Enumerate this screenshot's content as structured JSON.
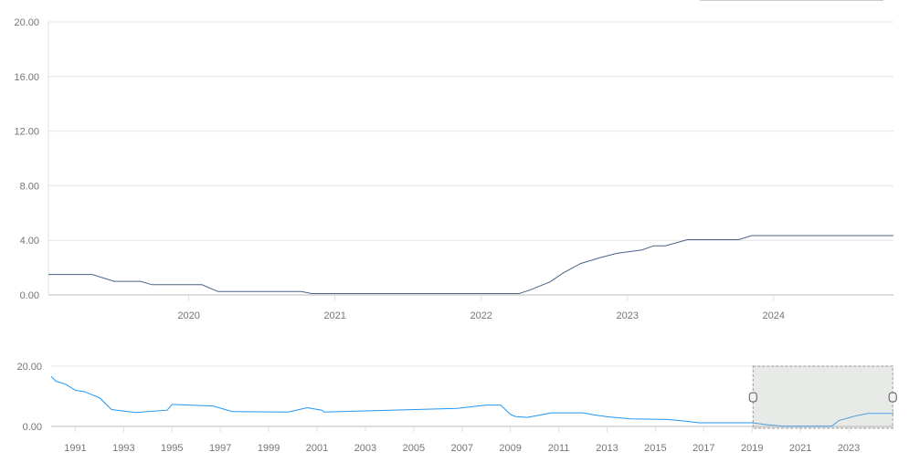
{
  "chart_data": [
    {
      "type": "line",
      "role": "main",
      "y_ticks": [
        "0.00",
        "4.00",
        "8.00",
        "12.00",
        "16.00",
        "20.00"
      ],
      "ylim": [
        0,
        20
      ],
      "x_ticks": [
        "2020",
        "2021",
        "2022",
        "2023",
        "2024"
      ],
      "xlim": [
        2019.04,
        2024.82
      ],
      "grid": true,
      "line_color": "#4a6389",
      "x": [
        2019.04,
        2019.34,
        2019.49,
        2019.67,
        2019.75,
        2020.09,
        2020.2,
        2020.77,
        2020.84,
        2022.26,
        2022.33,
        2022.47,
        2022.56,
        2022.68,
        2022.82,
        2022.93,
        2023.1,
        2023.18,
        2023.26,
        2023.41,
        2023.76,
        2023.85,
        2024.82
      ],
      "y": [
        1.5,
        1.5,
        1.0,
        1.0,
        0.75,
        0.75,
        0.25,
        0.25,
        0.1,
        0.1,
        0.35,
        0.95,
        1.6,
        2.3,
        2.75,
        3.05,
        3.3,
        3.6,
        3.6,
        4.05,
        4.05,
        4.35,
        4.35
      ]
    },
    {
      "type": "area",
      "role": "navigator",
      "y_ticks": [
        "0.00",
        "20.00"
      ],
      "ylim": [
        0,
        20
      ],
      "x_ticks": [
        "1991",
        "1993",
        "1995",
        "1997",
        "1999",
        "2001",
        "2003",
        "2005",
        "2007",
        "2009",
        "2011",
        "2013",
        "2015",
        "2017",
        "2019",
        "2021",
        "2023"
      ],
      "xlim": [
        1990.0,
        2024.85
      ],
      "line_color": "#2196f3",
      "fill_color": "#bbdefb",
      "selection": [
        2019.04,
        2024.82
      ],
      "x": [
        1990.0,
        1990.2,
        1990.6,
        1991.0,
        1991.4,
        1991.7,
        1992.0,
        1992.5,
        1993.5,
        1994.8,
        1995.0,
        1996.7,
        1997.2,
        1997.5,
        1999.8,
        2000.6,
        2001.2,
        2001.3,
        2006.8,
        2008.0,
        2008.6,
        2009.0,
        2009.2,
        2009.7,
        2010.3,
        2010.7,
        2012.0,
        2012.5,
        2013.0,
        2014.0,
        2015.5,
        2016.2,
        2016.8,
        2019.0,
        2019.7,
        2020.3,
        2022.3,
        2022.6,
        2023.3,
        2023.8,
        2024.85
      ],
      "y": [
        16.6,
        15,
        14,
        12,
        11.5,
        10.5,
        9.5,
        5.6,
        4.6,
        5.4,
        7.3,
        6.8,
        5.6,
        4.9,
        4.8,
        6.2,
        5.4,
        4.8,
        6.0,
        7.1,
        7.1,
        4.0,
        3.3,
        3.0,
        3.9,
        4.5,
        4.5,
        3.8,
        3.2,
        2.5,
        2.3,
        1.8,
        1.2,
        1.2,
        0.5,
        0.1,
        0.1,
        2.0,
        3.5,
        4.3,
        4.3
      ]
    }
  ]
}
